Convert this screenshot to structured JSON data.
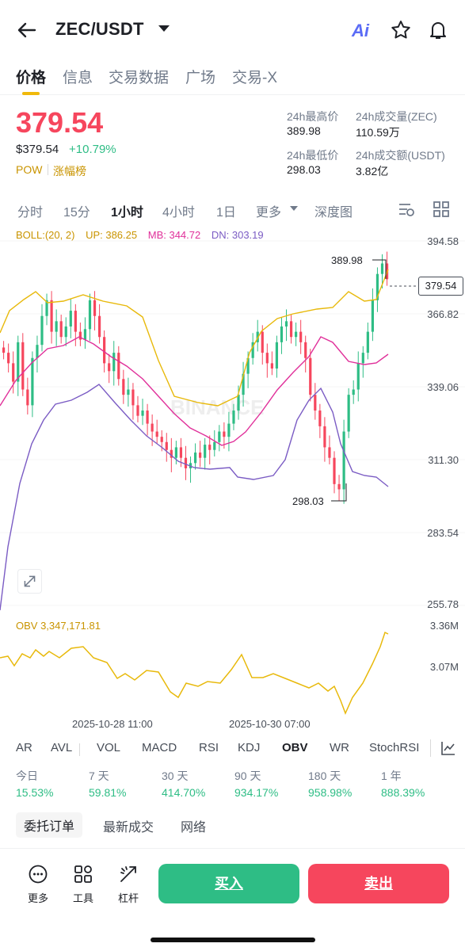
{
  "header": {
    "pair": "ZEC/USDT",
    "ai_label": "Ai"
  },
  "tabs": [
    "价格",
    "信息",
    "交易数据",
    "广场",
    "交易-X"
  ],
  "price": {
    "last": "379.54",
    "usd": "$379.54",
    "change": "+10.79%",
    "tag": "POW",
    "tag2": "涨幅榜"
  },
  "stats": {
    "high_label": "24h最高价",
    "high": "389.98",
    "vol_label": "24h成交量(ZEC)",
    "vol": "110.59万",
    "low_label": "24h最低价",
    "low": "298.03",
    "turnover_label": "24h成交额(USDT)",
    "turnover": "3.82亿"
  },
  "timeframes": [
    "分时",
    "15分",
    "1小时",
    "4小时",
    "1日",
    "更多",
    "深度图"
  ],
  "boll": {
    "label": "BOLL:(20, 2)",
    "up": "UP: 386.25",
    "mb": "MB: 344.72",
    "dn": "DN: 303.19"
  },
  "yaxis": [
    "394.58",
    "366.82",
    "339.06",
    "311.30",
    "283.54",
    "255.78"
  ],
  "chart_marks": {
    "high": "389.98",
    "low": "298.03",
    "current": "379.54",
    "watermark": "BINANCE"
  },
  "obv": {
    "label": "OBV 3,347,171.81",
    "axis_top": "3.36M",
    "axis_mid": "3.07M"
  },
  "dates": [
    "2025-10-28 11:00",
    "2025-10-30 07:00"
  ],
  "indicators": [
    "AR",
    "AVL",
    "VOL",
    "MACD",
    "RSI",
    "KDJ",
    "OBV",
    "WR",
    "StochRSI"
  ],
  "performance": [
    {
      "label": "今日",
      "value": "15.53%"
    },
    {
      "label": "7 天",
      "value": "59.81%"
    },
    {
      "label": "30 天",
      "value": "414.70%"
    },
    {
      "label": "90 天",
      "value": "934.17%"
    },
    {
      "label": "180 天",
      "value": "958.98%"
    },
    {
      "label": "1 年",
      "value": "888.39%"
    }
  ],
  "section_tabs": [
    "委托订单",
    "最新成交",
    "网络"
  ],
  "bottom": {
    "more": "更多",
    "tools": "工具",
    "leverage": "杠杆",
    "buy": "买入",
    "sell": "卖出"
  },
  "colors": {
    "up": "#2ebd85",
    "down": "#f6465d",
    "boll_up": "#e8b90b",
    "boll_mb": "#e0309a",
    "boll_dn": "#7b5cc4",
    "accent": "#f0b90b"
  }
}
